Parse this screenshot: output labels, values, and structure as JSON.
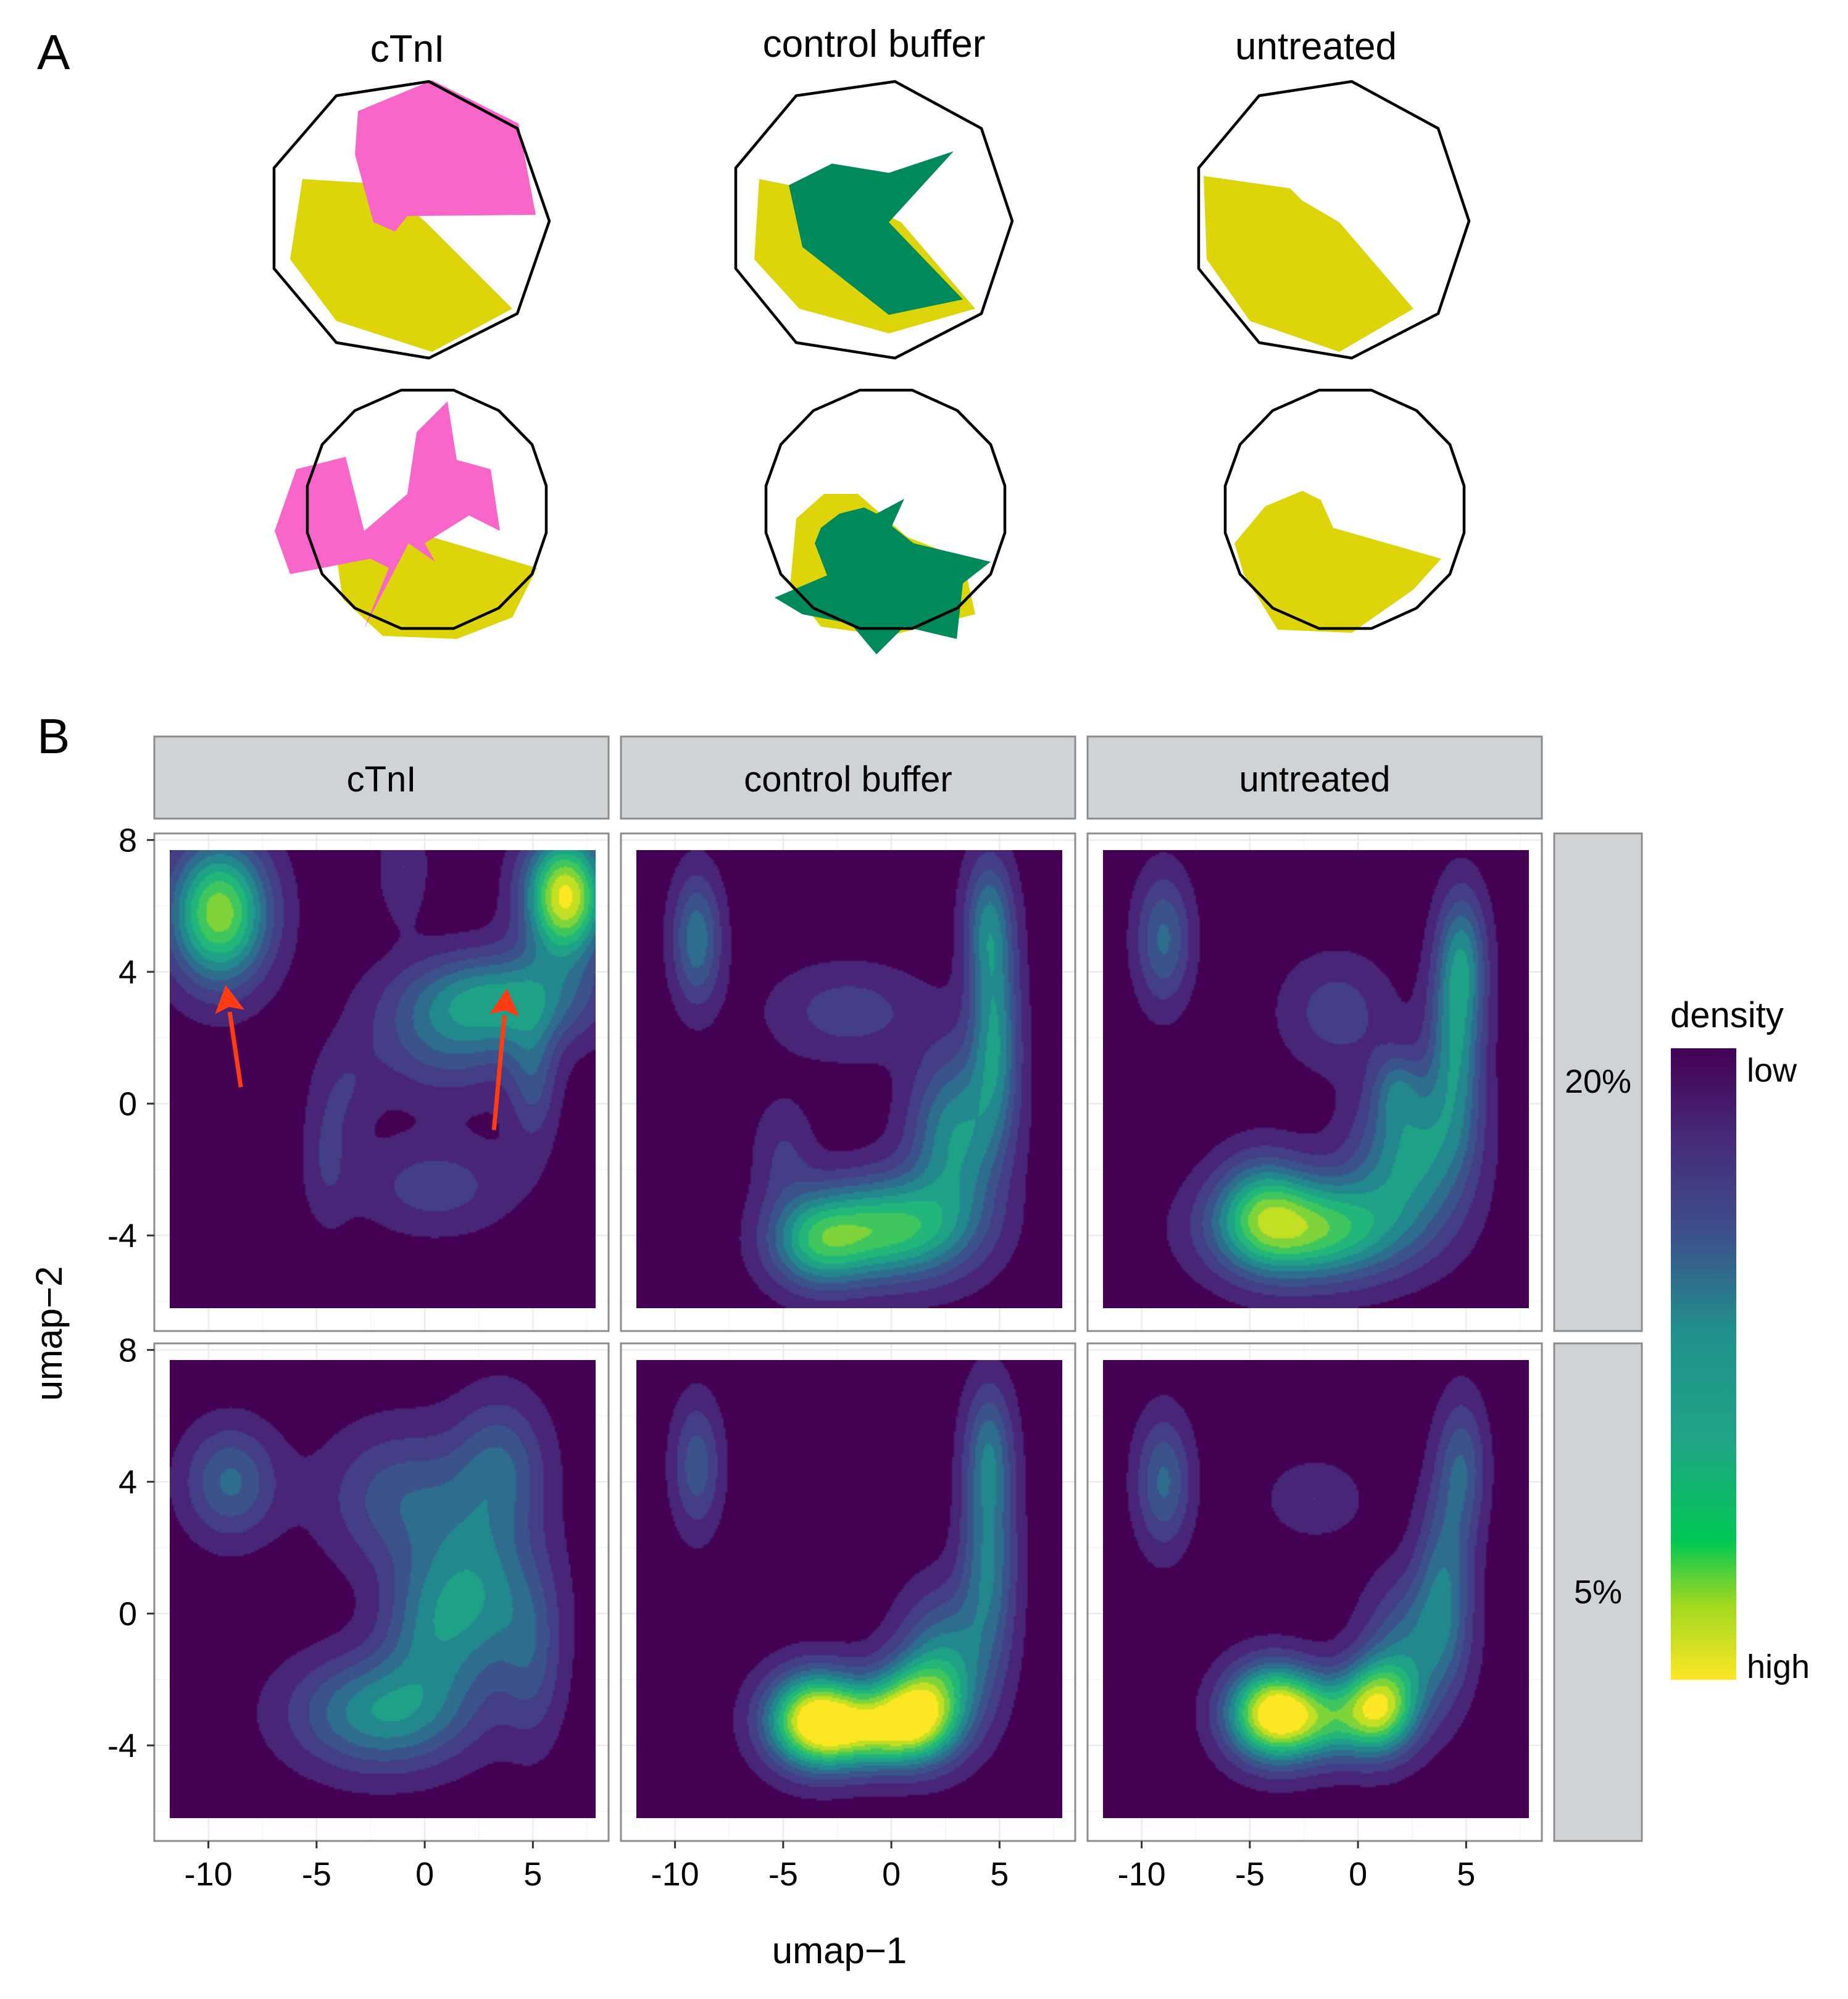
{
  "panel_labels": {
    "a": "A",
    "b": "B"
  },
  "colors": {
    "cTnI": "#f766c8",
    "control_buffer": "#00895a",
    "untreated": "#ddd40a",
    "arrow": "#ff3c14",
    "density_low": "#440154",
    "density_high": "#fde725"
  },
  "chart_data": [
    {
      "type": "radar",
      "columns": [
        "cTnI",
        "control buffer",
        "untreated"
      ],
      "rows": [
        {
          "outline": "decagon",
          "groups": [
            {
              "condition": "cTnI",
              "colors": [
                "untreated",
                "cTnI"
              ]
            },
            {
              "condition": "control buffer",
              "colors": [
                "untreated",
                "control_buffer"
              ]
            },
            {
              "condition": "untreated",
              "colors": [
                "untreated"
              ]
            }
          ]
        },
        {
          "outline": "many-sided polygon",
          "groups": [
            {
              "condition": "cTnI",
              "colors": [
                "untreated",
                "cTnI"
              ]
            },
            {
              "condition": "control buffer",
              "colors": [
                "untreated",
                "control_buffer"
              ]
            },
            {
              "condition": "untreated",
              "colors": [
                "untreated"
              ]
            }
          ]
        }
      ]
    },
    {
      "type": "heatmap",
      "subtype": "2d-density-contour facet grid",
      "columns": [
        "cTnI",
        "control buffer",
        "untreated"
      ],
      "rows": [
        "20%",
        "5%"
      ],
      "xlabel": "umap−1",
      "ylabel": "umap−2",
      "x_ticks": [
        -10,
        -5,
        0,
        5
      ],
      "x_tick_labels": [
        "-10",
        "-5",
        "0",
        "5"
      ],
      "y_ticks": [
        -4,
        0,
        4,
        8
      ],
      "y_tick_labels": [
        "-4",
        "0",
        "4",
        "8"
      ],
      "xlim": [
        -12.5,
        8.5
      ],
      "ylim": [
        -6.9,
        8.2
      ],
      "grid": true,
      "legend": {
        "title": "density",
        "low_label": "low",
        "high_label": "high",
        "position": "right"
      },
      "annotations": [
        {
          "facet": "cTnI / 20%",
          "type": "arrow",
          "from": [
            -8.5,
            0.5
          ],
          "to": [
            -9.2,
            3.6
          ]
        },
        {
          "facet": "cTnI / 20%",
          "type": "arrow",
          "from": [
            3.2,
            -0.8
          ],
          "to": [
            3.8,
            3.5
          ]
        }
      ],
      "facets": [
        {
          "column": "cTnI",
          "row": "20%",
          "peaks": [
            {
              "x": -9.5,
              "y": 5.8,
              "sx": 1.6,
              "sy": 1.5,
              "w": 0.85
            },
            {
              "x": 6.5,
              "y": 6.3,
              "sx": 1.3,
              "sy": 1.3,
              "w": 1.0
            },
            {
              "x": 3.5,
              "y": 3.2,
              "sx": 3.0,
              "sy": 1.0,
              "w": 0.5
            },
            {
              "x": 1.0,
              "y": 1.8,
              "sx": 2.5,
              "sy": 1.2,
              "w": 0.25
            },
            {
              "x": 5.0,
              "y": 0.8,
              "sx": 0.8,
              "sy": 1.5,
              "w": 0.25
            },
            {
              "x": -1.0,
              "y": 7.2,
              "sx": 0.8,
              "sy": 1.2,
              "w": 0.15
            },
            {
              "x": 0.5,
              "y": -2.5,
              "sx": 2.5,
              "sy": 1.0,
              "w": 0.2
            },
            {
              "x": -4.5,
              "y": -1.5,
              "sx": 0.8,
              "sy": 1.5,
              "w": 0.15
            },
            {
              "x": -3.5,
              "y": 0.5,
              "sx": 1.0,
              "sy": 1.0,
              "w": 0.1
            }
          ]
        },
        {
          "column": "control buffer",
          "row": "20%",
          "peaks": [
            {
              "x": -9.0,
              "y": 5.0,
              "sx": 0.8,
              "sy": 1.4,
              "w": 0.4
            },
            {
              "x": 4.5,
              "y": 5.5,
              "sx": 0.8,
              "sy": 1.5,
              "w": 0.4
            },
            {
              "x": 4.8,
              "y": 2.0,
              "sx": 0.8,
              "sy": 2.0,
              "w": 0.45
            },
            {
              "x": 3.0,
              "y": -1.0,
              "sx": 1.5,
              "sy": 1.8,
              "w": 0.5
            },
            {
              "x": 0.0,
              "y": -3.8,
              "sx": 2.5,
              "sy": 1.1,
              "w": 0.7
            },
            {
              "x": -3.5,
              "y": -4.2,
              "sx": 1.6,
              "sy": 1.0,
              "w": 0.5
            },
            {
              "x": -2.0,
              "y": 2.8,
              "sx": 2.5,
              "sy": 1.0,
              "w": 0.2
            },
            {
              "x": -5.0,
              "y": -1.5,
              "sx": 1.0,
              "sy": 1.2,
              "w": 0.15
            }
          ]
        },
        {
          "column": "untreated",
          "row": "20%",
          "peaks": [
            {
              "x": -9.0,
              "y": 5.0,
              "sx": 0.9,
              "sy": 1.4,
              "w": 0.35
            },
            {
              "x": 4.8,
              "y": 4.5,
              "sx": 0.8,
              "sy": 1.5,
              "w": 0.4
            },
            {
              "x": 4.5,
              "y": 1.5,
              "sx": 0.9,
              "sy": 2.0,
              "w": 0.45
            },
            {
              "x": 2.5,
              "y": -1.5,
              "sx": 1.8,
              "sy": 1.5,
              "w": 0.5
            },
            {
              "x": -2.0,
              "y": -3.8,
              "sx": 3.0,
              "sy": 1.1,
              "w": 0.75
            },
            {
              "x": -4.5,
              "y": -3.2,
              "sx": 1.5,
              "sy": 1.2,
              "w": 0.4
            },
            {
              "x": 1.8,
              "y": 0.5,
              "sx": 0.8,
              "sy": 0.8,
              "w": 0.25
            },
            {
              "x": -1.0,
              "y": 2.8,
              "sx": 1.8,
              "sy": 1.2,
              "w": 0.2
            }
          ]
        },
        {
          "column": "cTnI",
          "row": "5%",
          "peaks": [
            {
              "x": -9.0,
              "y": 4.0,
              "sx": 1.5,
              "sy": 1.2,
              "w": 0.35
            },
            {
              "x": -1.0,
              "y": 3.5,
              "sx": 2.5,
              "sy": 1.5,
              "w": 0.3
            },
            {
              "x": 3.5,
              "y": 4.5,
              "sx": 1.5,
              "sy": 1.5,
              "w": 0.3
            },
            {
              "x": 2.5,
              "y": 0.5,
              "sx": 2.0,
              "sy": 1.8,
              "w": 0.45
            },
            {
              "x": -2.0,
              "y": -3.0,
              "sx": 2.8,
              "sy": 1.2,
              "w": 0.5
            },
            {
              "x": 0.0,
              "y": -0.5,
              "sx": 1.5,
              "sy": 1.5,
              "w": 0.25
            },
            {
              "x": 5.0,
              "y": -1.5,
              "sx": 1.0,
              "sy": 1.8,
              "w": 0.2
            }
          ]
        },
        {
          "column": "control buffer",
          "row": "5%",
          "peaks": [
            {
              "x": -9.0,
              "y": 4.5,
              "sx": 0.8,
              "sy": 1.4,
              "w": 0.3
            },
            {
              "x": 4.5,
              "y": 5.0,
              "sx": 0.8,
              "sy": 1.5,
              "w": 0.35
            },
            {
              "x": 4.5,
              "y": 1.5,
              "sx": 0.9,
              "sy": 2.0,
              "w": 0.4
            },
            {
              "x": 2.5,
              "y": -1.5,
              "sx": 1.5,
              "sy": 1.5,
              "w": 0.45
            },
            {
              "x": -3.5,
              "y": -3.2,
              "sx": 1.6,
              "sy": 1.0,
              "w": 1.0
            },
            {
              "x": 1.0,
              "y": -3.0,
              "sx": 1.5,
              "sy": 1.0,
              "w": 0.8
            },
            {
              "x": -1.0,
              "y": -3.6,
              "sx": 2.0,
              "sy": 0.8,
              "w": 0.5
            }
          ]
        },
        {
          "column": "untreated",
          "row": "5%",
          "peaks": [
            {
              "x": -9.0,
              "y": 4.0,
              "sx": 0.9,
              "sy": 1.4,
              "w": 0.35
            },
            {
              "x": -2.0,
              "y": 3.5,
              "sx": 1.5,
              "sy": 0.8,
              "w": 0.15
            },
            {
              "x": 4.8,
              "y": 4.5,
              "sx": 0.8,
              "sy": 1.5,
              "w": 0.3
            },
            {
              "x": 4.0,
              "y": 1.0,
              "sx": 0.9,
              "sy": 2.0,
              "w": 0.35
            },
            {
              "x": -4.0,
              "y": -3.0,
              "sx": 1.5,
              "sy": 1.0,
              "w": 0.95
            },
            {
              "x": 1.0,
              "y": -2.8,
              "sx": 1.2,
              "sy": 1.0,
              "w": 0.75
            },
            {
              "x": -1.5,
              "y": -3.2,
              "sx": 1.8,
              "sy": 0.9,
              "w": 0.5
            },
            {
              "x": 2.5,
              "y": -1.0,
              "sx": 1.5,
              "sy": 1.5,
              "w": 0.35
            }
          ]
        }
      ]
    }
  ]
}
